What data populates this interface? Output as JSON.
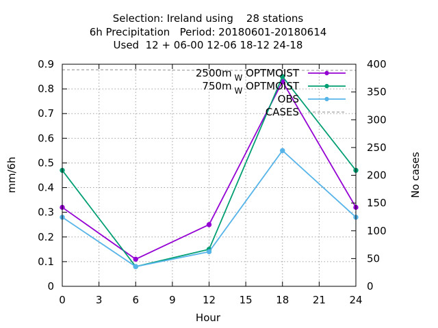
{
  "chart_data": {
    "type": "line",
    "title_lines": [
      "Selection: Ireland using    28 stations",
      "6h Precipitation   Period: 20180601-20180614",
      "Used  12 + 06-00 12-06 18-12 24-18"
    ],
    "xlabel": "Hour",
    "ylabel": "mm/6h",
    "y2label": "No cases",
    "x": [
      0,
      6,
      12,
      18,
      24
    ],
    "xticks": [
      0,
      3,
      6,
      9,
      12,
      15,
      18,
      21,
      24
    ],
    "xlim": [
      0,
      24
    ],
    "yticks": [
      0,
      0.1,
      0.2,
      0.3,
      0.4,
      0.5,
      0.6,
      0.7,
      0.8,
      0.9
    ],
    "ylim": [
      0,
      0.9
    ],
    "y2ticks": [
      0,
      50,
      100,
      150,
      200,
      250,
      300,
      350,
      400
    ],
    "y2lim": [
      0,
      400
    ],
    "grid": true,
    "legend_position": "top-right",
    "series": [
      {
        "label_main": "2500m",
        "label_sub": "W",
        "label_tail": "OPTMOIST",
        "color": "#9400d3",
        "axis": "y",
        "values": [
          0.32,
          0.11,
          0.25,
          0.83,
          0.32
        ]
      },
      {
        "label_main": "750m",
        "label_sub": "W",
        "label_tail": "OPTMOIST",
        "color": "#009e73",
        "axis": "y",
        "values": [
          0.47,
          0.08,
          0.15,
          0.85,
          0.47
        ]
      },
      {
        "label_main": "OBS",
        "label_sub": "",
        "label_tail": "",
        "color": "#56b4e9",
        "axis": "y",
        "values": [
          0.28,
          0.08,
          0.14,
          0.55,
          0.28
        ]
      },
      {
        "label_main": "CASES",
        "label_sub": "",
        "label_tail": "",
        "color": "#a0a0a0",
        "axis": "y2",
        "dashed": true,
        "values": [
          390,
          390,
          389,
          389,
          389
        ]
      }
    ]
  }
}
